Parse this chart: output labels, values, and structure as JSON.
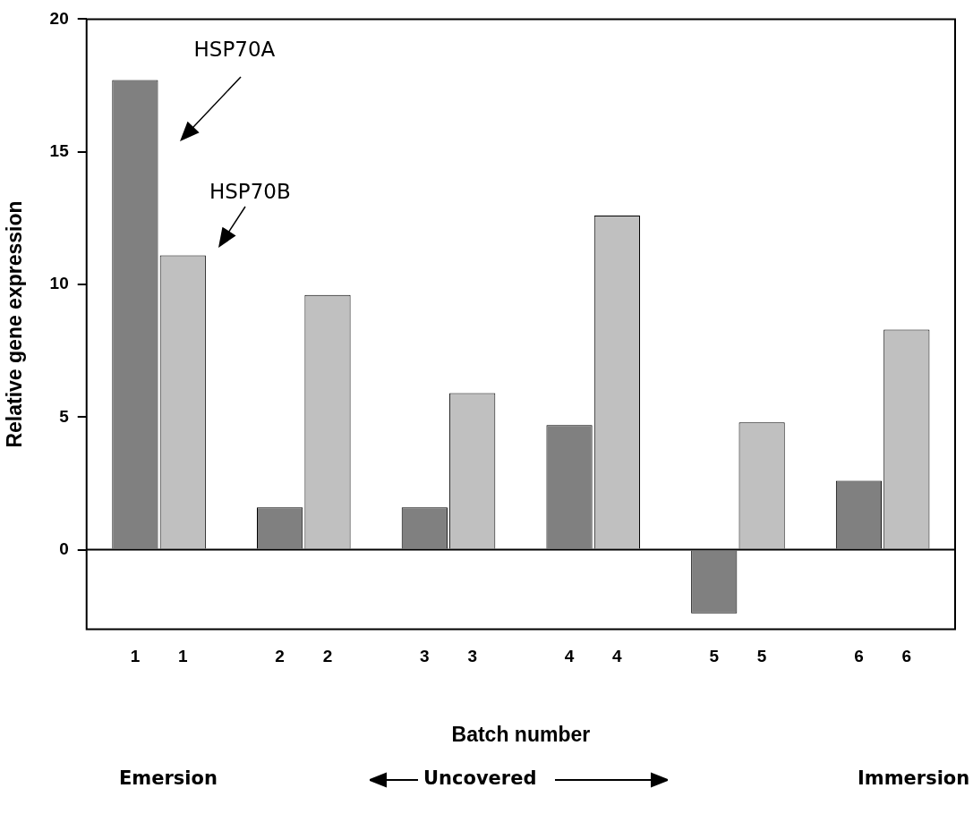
{
  "chart_data": {
    "type": "bar",
    "xlabel": "Batch number",
    "ylabel": "Relative gene expression",
    "categories": [
      "1",
      "2",
      "3",
      "4",
      "5",
      "6"
    ],
    "series": [
      {
        "name": "HSP70A",
        "color": "#808080",
        "values": [
          17.7,
          1.6,
          1.6,
          4.7,
          -2.4,
          2.6
        ]
      },
      {
        "name": "HSP70B",
        "color": "#c0c0c0",
        "values": [
          11.1,
          9.6,
          5.9,
          12.6,
          4.8,
          8.3
        ]
      }
    ],
    "ylim": [
      -3,
      20
    ],
    "yticks": [
      0,
      5,
      10,
      15,
      20
    ],
    "annotations": [
      "Emersion",
      "Uncovered",
      "Immersion"
    ]
  }
}
